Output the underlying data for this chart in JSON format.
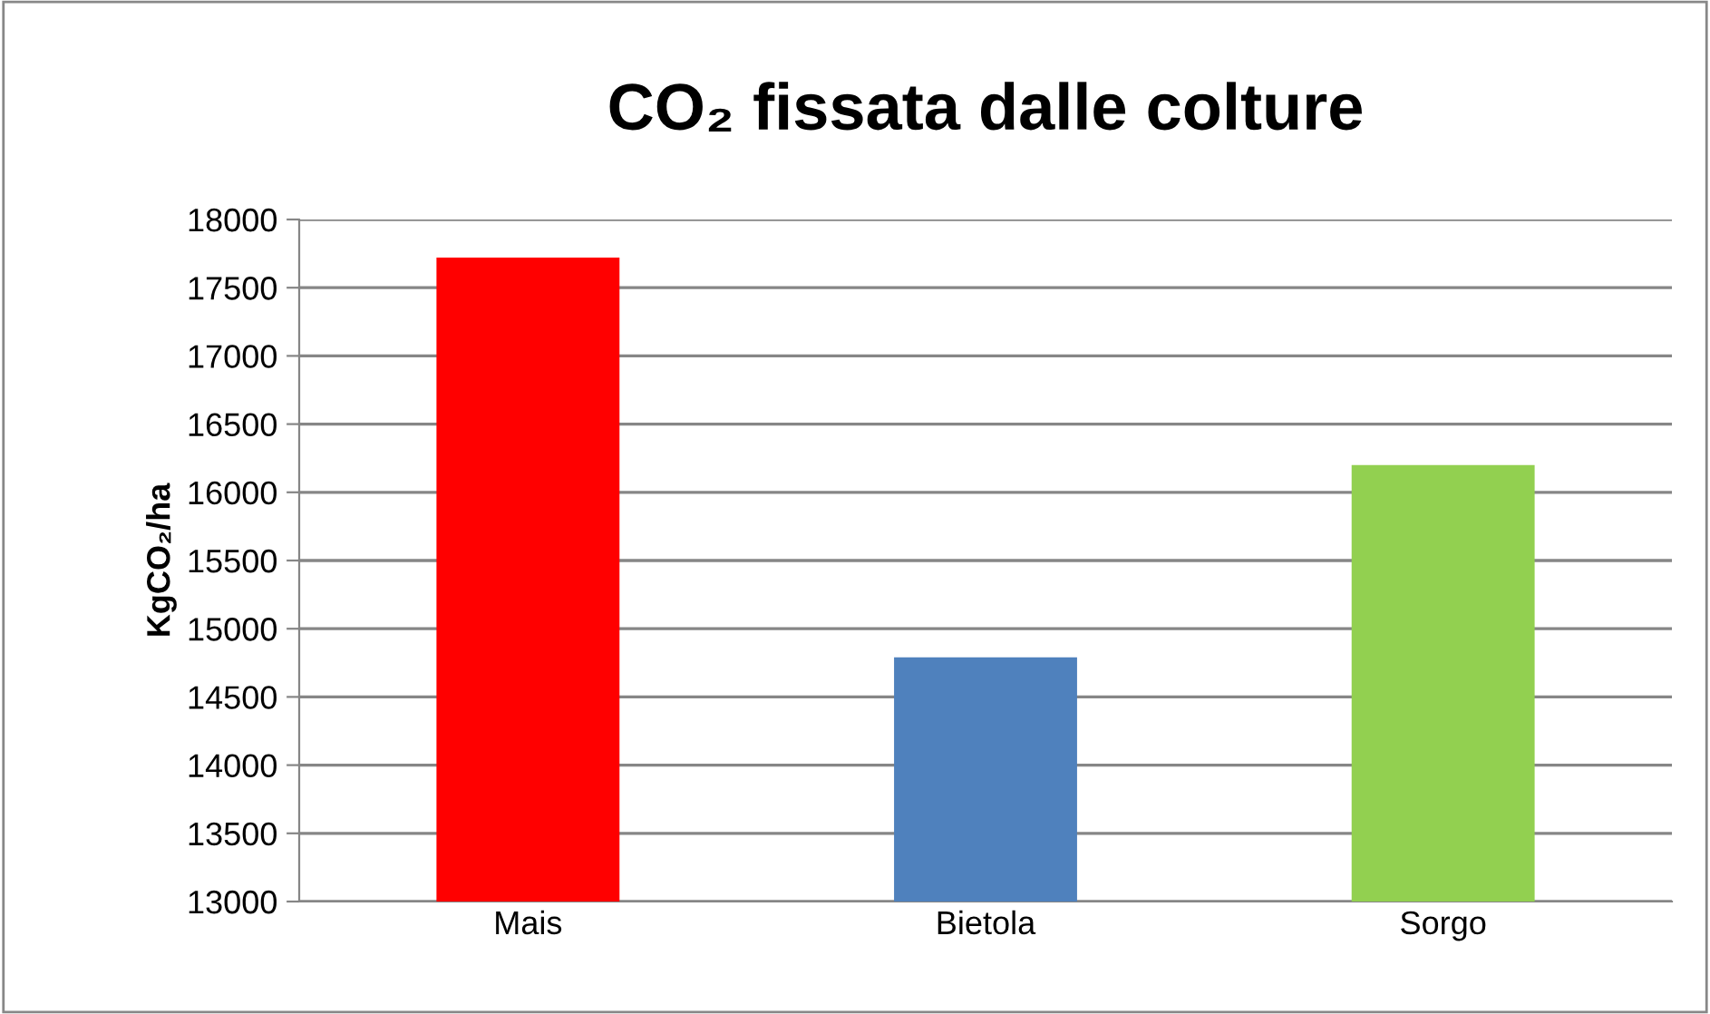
{
  "chart_data": {
    "type": "bar",
    "title": "CO₂ fissata dalle colture",
    "ylabel": "KgCO₂/ha",
    "categories": [
      "Mais",
      "Bietola",
      "Sorgo"
    ],
    "values": [
      17720,
      14790,
      16200
    ],
    "colors": [
      "#ff0000",
      "#4f81bd",
      "#92d050"
    ],
    "ylim": [
      13000,
      18000
    ],
    "yticks": [
      13000,
      13500,
      14000,
      14500,
      15000,
      15500,
      16000,
      16500,
      17000,
      17500,
      18000
    ],
    "grid": "y"
  }
}
